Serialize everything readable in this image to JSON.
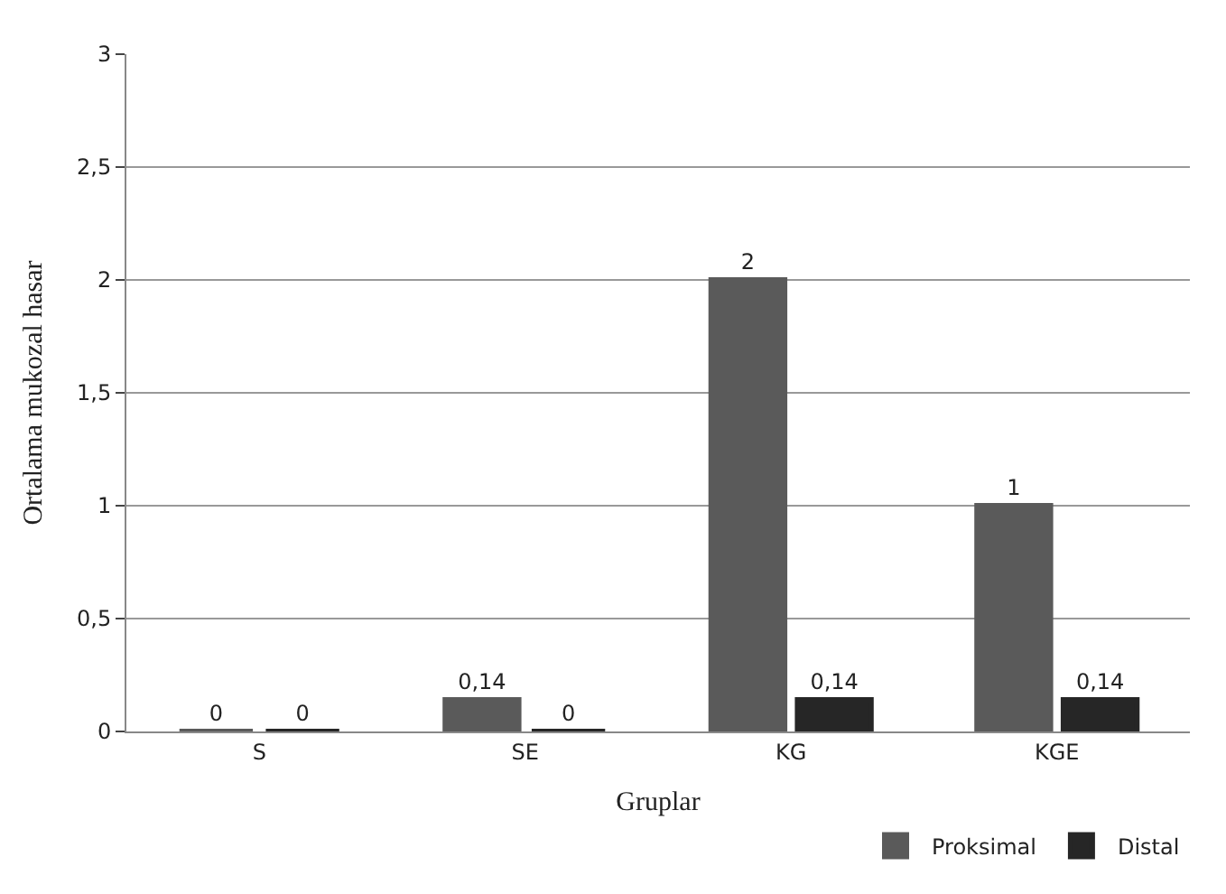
{
  "chart_data": {
    "type": "bar",
    "xlabel": "Gruplar",
    "ylabel": "Ortalama mukozal hasar",
    "categories": [
      "S",
      "SE",
      "KG",
      "KGE"
    ],
    "series": [
      {
        "name": "Proksimal",
        "color": "#5a5a5a",
        "values": [
          0,
          0.14,
          2,
          1
        ],
        "value_labels": [
          "0",
          "0,14",
          "2",
          "1"
        ]
      },
      {
        "name": "Distal",
        "color": "#262626",
        "values": [
          0,
          0,
          0.14,
          0.14
        ],
        "value_labels": [
          "0",
          "0",
          "0,14",
          "0,14"
        ]
      }
    ],
    "ylim": [
      0,
      3
    ],
    "yticks": [
      0,
      {
        "value": 0.5,
        "label": "0,5"
      },
      1,
      {
        "value": 1.5,
        "label": "1,5"
      },
      2,
      {
        "value": 2.5,
        "label": "2,5"
      },
      3
    ],
    "grid": "y",
    "legend": "bottom right"
  }
}
